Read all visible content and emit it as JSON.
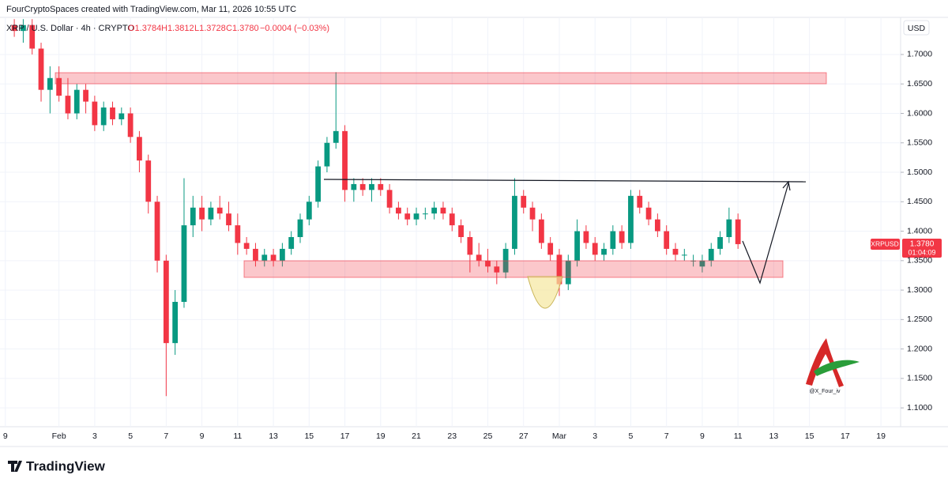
{
  "header": {
    "credit": "FourCryptoSpaces created with TradingView.com, Mar 11, 2026 10:55 UTC"
  },
  "legend": {
    "symbol": "XRP / U.S. Dollar · 4h · CRYPTO",
    "ohlc": [
      "O1.3784",
      "H1.3812",
      "L1.3728",
      "C1.3780"
    ],
    "change": "−0.0004 (−0.03%)"
  },
  "price_scale": {
    "currency": "USD",
    "symbol_tag": "XRPUSD",
    "last_price": "1.3780",
    "countdown": "01:04:09"
  },
  "watermark": "@X_Four_iv",
  "brand": "TradingView",
  "chart_data": {
    "type": "candlestick",
    "up_color": "#089981",
    "down_color": "#f23645",
    "xlim": [
      -3.3,
      47.1
    ],
    "ylim": [
      1.068,
      1.763
    ],
    "xticks": [
      {
        "value": -3,
        "label": "9"
      },
      {
        "value": 0,
        "label": "Feb"
      },
      {
        "value": 2,
        "label": "3"
      },
      {
        "value": 4,
        "label": "5"
      },
      {
        "value": 6,
        "label": "7"
      },
      {
        "value": 8,
        "label": "9"
      },
      {
        "value": 10,
        "label": "11"
      },
      {
        "value": 12,
        "label": "13"
      },
      {
        "value": 14,
        "label": "15"
      },
      {
        "value": 16,
        "label": "17"
      },
      {
        "value": 18,
        "label": "19"
      },
      {
        "value": 20,
        "label": "21"
      },
      {
        "value": 22,
        "label": "23"
      },
      {
        "value": 24,
        "label": "25"
      },
      {
        "value": 26,
        "label": "27"
      },
      {
        "value": 28,
        "label": "Mar"
      },
      {
        "value": 30,
        "label": "3"
      },
      {
        "value": 32,
        "label": "5"
      },
      {
        "value": 34,
        "label": "7"
      },
      {
        "value": 36,
        "label": "9"
      },
      {
        "value": 38,
        "label": "11"
      },
      {
        "value": 40,
        "label": "13"
      },
      {
        "value": 42,
        "label": "15"
      },
      {
        "value": 44,
        "label": "17"
      },
      {
        "value": 46,
        "label": "19"
      }
    ],
    "yticks": [
      {
        "value": 1.1,
        "label": "1.1000"
      },
      {
        "value": 1.15,
        "label": "1.1500"
      },
      {
        "value": 1.2,
        "label": "1.2000"
      },
      {
        "value": 1.25,
        "label": "1.2500"
      },
      {
        "value": 1.3,
        "label": "1.3000"
      },
      {
        "value": 1.35,
        "label": "1.3500"
      },
      {
        "value": 1.4,
        "label": "1.4000"
      },
      {
        "value": 1.45,
        "label": "1.4500"
      },
      {
        "value": 1.5,
        "label": "1.5000"
      },
      {
        "value": 1.55,
        "label": "1.5500"
      },
      {
        "value": 1.6,
        "label": "1.6000"
      },
      {
        "value": 1.65,
        "label": "1.6500"
      },
      {
        "value": 1.7,
        "label": "1.7000"
      }
    ],
    "x": [
      -2.5,
      -2,
      -1.5,
      -1,
      -0.5,
      0,
      0.5,
      1,
      1.5,
      2,
      2.5,
      3,
      3.5,
      4,
      4.5,
      5,
      5.5,
      6,
      6.5,
      7,
      7.5,
      8,
      8.5,
      9,
      9.5,
      10,
      10.5,
      11,
      11.5,
      12,
      12.5,
      13,
      13.5,
      14,
      14.5,
      15,
      15.5,
      16,
      16.5,
      17,
      17.5,
      18,
      18.5,
      19,
      19.5,
      20,
      20.5,
      21,
      21.5,
      22,
      22.5,
      23,
      23.5,
      24,
      24.5,
      25,
      25.5,
      26,
      26.5,
      27,
      27.5,
      28,
      28.5,
      29,
      29.5,
      30,
      30.5,
      31,
      31.5,
      32,
      32.5,
      33,
      33.5,
      34,
      34.5,
      35,
      35.5,
      36,
      36.5,
      37,
      37.5,
      38
    ],
    "open": [
      1.75,
      1.74,
      1.75,
      1.71,
      1.64,
      1.66,
      1.63,
      1.6,
      1.64,
      1.62,
      1.58,
      1.61,
      1.59,
      1.6,
      1.56,
      1.52,
      1.45,
      1.35,
      1.21,
      1.28,
      1.41,
      1.44,
      1.42,
      1.44,
      1.43,
      1.41,
      1.38,
      1.37,
      1.35,
      1.36,
      1.35,
      1.37,
      1.39,
      1.42,
      1.45,
      1.51,
      1.55,
      1.57,
      1.47,
      1.48,
      1.47,
      1.48,
      1.47,
      1.44,
      1.43,
      1.42,
      1.43,
      1.43,
      1.44,
      1.43,
      1.41,
      1.39,
      1.36,
      1.35,
      1.34,
      1.33,
      1.37,
      1.46,
      1.44,
      1.42,
      1.38,
      1.36,
      1.31,
      1.35,
      1.4,
      1.38,
      1.36,
      1.37,
      1.4,
      1.38,
      1.46,
      1.44,
      1.42,
      1.4,
      1.37,
      1.36,
      1.35,
      1.34,
      1.35,
      1.37,
      1.39,
      1.42
    ],
    "high": [
      1.76,
      1.76,
      1.76,
      1.72,
      1.68,
      1.68,
      1.66,
      1.65,
      1.65,
      1.63,
      1.62,
      1.62,
      1.61,
      1.61,
      1.57,
      1.53,
      1.46,
      1.36,
      1.3,
      1.49,
      1.46,
      1.46,
      1.45,
      1.46,
      1.45,
      1.43,
      1.39,
      1.38,
      1.37,
      1.37,
      1.38,
      1.4,
      1.43,
      1.46,
      1.52,
      1.56,
      1.67,
      1.58,
      1.49,
      1.49,
      1.49,
      1.49,
      1.48,
      1.45,
      1.44,
      1.44,
      1.44,
      1.45,
      1.45,
      1.44,
      1.42,
      1.4,
      1.38,
      1.37,
      1.35,
      1.38,
      1.49,
      1.47,
      1.45,
      1.43,
      1.39,
      1.37,
      1.36,
      1.42,
      1.41,
      1.39,
      1.38,
      1.41,
      1.41,
      1.47,
      1.47,
      1.45,
      1.43,
      1.41,
      1.38,
      1.37,
      1.36,
      1.36,
      1.38,
      1.4,
      1.44,
      1.43
    ],
    "low": [
      1.73,
      1.72,
      1.7,
      1.62,
      1.6,
      1.62,
      1.59,
      1.59,
      1.6,
      1.57,
      1.57,
      1.58,
      1.58,
      1.55,
      1.5,
      1.43,
      1.33,
      1.12,
      1.19,
      1.27,
      1.39,
      1.4,
      1.41,
      1.42,
      1.4,
      1.36,
      1.36,
      1.34,
      1.34,
      1.34,
      1.34,
      1.36,
      1.38,
      1.41,
      1.44,
      1.5,
      1.54,
      1.45,
      1.45,
      1.46,
      1.45,
      1.46,
      1.43,
      1.42,
      1.41,
      1.41,
      1.42,
      1.42,
      1.42,
      1.4,
      1.38,
      1.33,
      1.34,
      1.33,
      1.31,
      1.32,
      1.36,
      1.43,
      1.4,
      1.37,
      1.35,
      1.29,
      1.3,
      1.34,
      1.37,
      1.35,
      1.35,
      1.36,
      1.37,
      1.37,
      1.43,
      1.41,
      1.39,
      1.36,
      1.35,
      1.35,
      1.34,
      1.33,
      1.34,
      1.36,
      1.38,
      1.37
    ],
    "close": [
      1.74,
      1.75,
      1.71,
      1.64,
      1.66,
      1.63,
      1.6,
      1.64,
      1.62,
      1.58,
      1.61,
      1.59,
      1.6,
      1.56,
      1.52,
      1.45,
      1.35,
      1.21,
      1.28,
      1.41,
      1.44,
      1.42,
      1.44,
      1.43,
      1.41,
      1.38,
      1.37,
      1.35,
      1.36,
      1.35,
      1.37,
      1.39,
      1.42,
      1.45,
      1.51,
      1.55,
      1.57,
      1.47,
      1.48,
      1.47,
      1.48,
      1.47,
      1.44,
      1.43,
      1.42,
      1.43,
      1.43,
      1.44,
      1.43,
      1.41,
      1.39,
      1.36,
      1.35,
      1.34,
      1.33,
      1.37,
      1.46,
      1.44,
      1.42,
      1.38,
      1.36,
      1.31,
      1.35,
      1.4,
      1.38,
      1.36,
      1.37,
      1.4,
      1.38,
      1.46,
      1.44,
      1.42,
      1.4,
      1.37,
      1.36,
      1.36,
      1.35,
      1.35,
      1.37,
      1.39,
      1.42,
      1.378
    ]
  }
}
